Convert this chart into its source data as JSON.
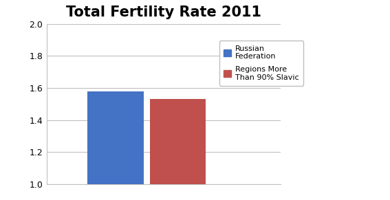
{
  "title": "Total Fertility Rate 2011",
  "values": [
    1.58,
    1.53
  ],
  "bar_colors": [
    "#4472C4",
    "#C0504D"
  ],
  "legend_labels": [
    "Russian\nFederation",
    "Regions More\nThan 90% Slavic"
  ],
  "ylim": [
    1.0,
    2.0
  ],
  "yticks": [
    1.0,
    1.2,
    1.4,
    1.6,
    1.8,
    2.0
  ],
  "title_fontsize": 15,
  "background_color": "#FFFFFF",
  "plot_bg_color": "#FFFFFF",
  "grid_color": "#BFBFBF",
  "bar_width": 0.18,
  "bar_positions": [
    0.22,
    0.42
  ]
}
